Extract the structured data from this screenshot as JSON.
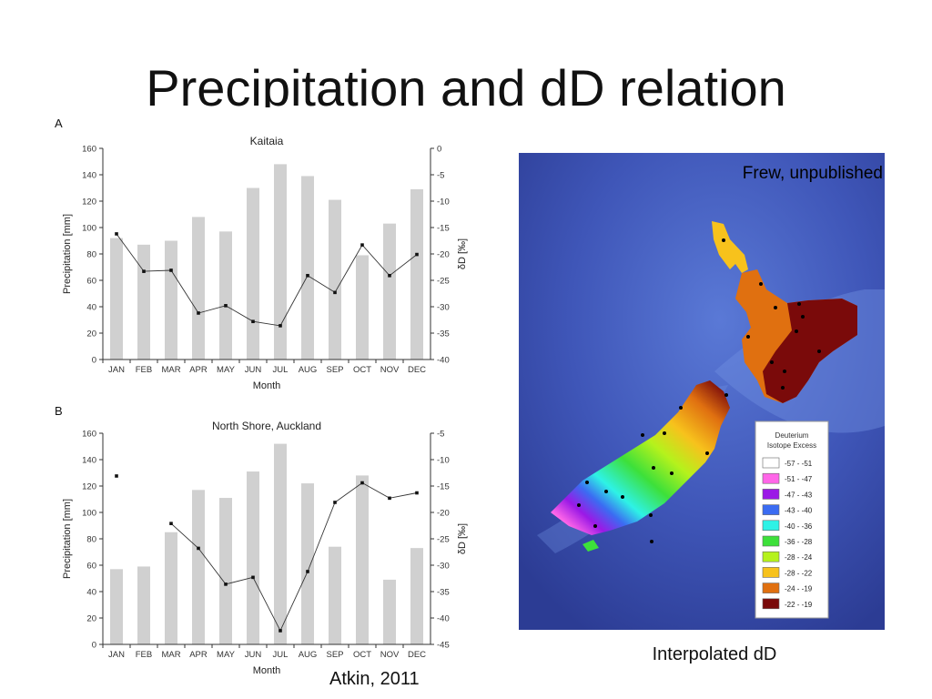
{
  "slide": {
    "title": "Precipitation and dD relation",
    "map_credit": "Frew, unpublished",
    "map_caption": "Interpolated dD",
    "source_credit": "Atkin, 2011"
  },
  "chart_data": [
    {
      "panel": "A",
      "type": "bar+line",
      "title": "Kaitaia",
      "xlabel": "Month",
      "ylabel": "Precipitation [mm]",
      "y2label": "δD [‰]",
      "categories": [
        "JAN",
        "FEB",
        "MAR",
        "APR",
        "MAY",
        "JUN",
        "JUL",
        "AUG",
        "SEP",
        "OCT",
        "NOV",
        "DEC"
      ],
      "ylim": [
        0,
        160
      ],
      "yticks": [
        0,
        20,
        40,
        60,
        80,
        100,
        120,
        140,
        160
      ],
      "y2lim": [
        -40,
        0
      ],
      "y2ticks": [
        0,
        -5,
        -10,
        -15,
        -20,
        -25,
        -30,
        -35,
        -40
      ],
      "bar_color": "#d0d0d0",
      "series": [
        {
          "kind": "bar",
          "values": [
            92,
            87,
            90,
            108,
            97,
            130,
            148,
            139,
            121,
            79,
            103,
            129
          ]
        },
        {
          "kind": "line",
          "values": [
            -16.2,
            -23.3,
            -23.1,
            -31.2,
            -29.8,
            -32.8,
            -33.6,
            -24.1,
            -27.3,
            -18.3,
            -24.1,
            -20.1
          ]
        }
      ]
    },
    {
      "panel": "B",
      "type": "bar+line",
      "title": "North Shore, Auckland",
      "xlabel": "Month",
      "ylabel": "Precipitation [mm]",
      "y2label": "δD [‰]",
      "categories": [
        "JAN",
        "FEB",
        "MAR",
        "APR",
        "MAY",
        "JUN",
        "JUL",
        "AUG",
        "SEP",
        "OCT",
        "NOV",
        "DEC"
      ],
      "ylim": [
        0,
        160
      ],
      "yticks": [
        0,
        20,
        40,
        60,
        80,
        100,
        120,
        140,
        160
      ],
      "y2lim": [
        -45,
        -5
      ],
      "y2ticks": [
        -5,
        -10,
        -15,
        -20,
        -25,
        -30,
        -35,
        -40,
        -45
      ],
      "bar_color": "#d0d0d0",
      "series": [
        {
          "kind": "bar",
          "values": [
            57,
            59,
            85,
            117,
            111,
            131,
            152,
            122,
            74,
            128,
            49,
            73
          ]
        },
        {
          "kind": "line",
          "values": [
            -13.1,
            null,
            -22.1,
            -26.8,
            -33.6,
            -32.3,
            -42.4,
            -31.2,
            -18.1,
            -14.4,
            -17.3,
            -16.3
          ]
        }
      ]
    }
  ],
  "map": {
    "legend_title_line1": "Deuterium",
    "legend_title_line2": "Isotope Excess",
    "legend": [
      {
        "label": "-57 - -51",
        "color": "#ffffff"
      },
      {
        "label": "-51 - -47",
        "color": "#ff66e8"
      },
      {
        "label": "-47 - -43",
        "color": "#9b19e6"
      },
      {
        "label": "-43 - -40",
        "color": "#3b6cf2"
      },
      {
        "label": "-40 - -36",
        "color": "#2ef2e6"
      },
      {
        "label": "-36 - -28",
        "color": "#3de03a"
      },
      {
        "label": "-28 - -24",
        "color": "#b5f21c"
      },
      {
        "label": "-28 - -22",
        "color": "#f7c21c"
      },
      {
        "label": "-24 - -19",
        "color": "#e07010"
      },
      {
        "label": "-22 - -19",
        "color": "#7a0a0a"
      }
    ]
  }
}
